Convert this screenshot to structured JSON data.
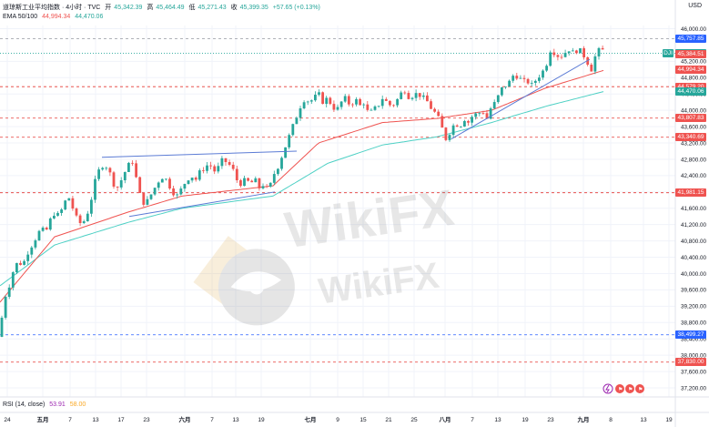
{
  "header": {
    "symbol": "道琼斯工业平均指数 · 4小时 · TVC",
    "open_label": "开",
    "open": "45,342.39",
    "high_label": "高",
    "high": "45,464.49",
    "low_label": "低",
    "low": "45,271.43",
    "close_label": "收",
    "close": "45,399.35",
    "change": "+57.65 (+0.13%)"
  },
  "ema": {
    "label": "EMA 50/100",
    "v50": "44,994.34",
    "v100": "44,470.06"
  },
  "rsi": {
    "label": "RSI (14, close)",
    "v1": "53.91",
    "v2": "58.00"
  },
  "currency": "USD",
  "colors": {
    "up": "#26a69a",
    "down": "#ef5350",
    "ema50": "#ef5350",
    "ema100": "#4dd0c4",
    "trend": "#5b7bd5",
    "level": "#e53935",
    "level_blue": "#2962ff"
  },
  "chart_data": {
    "type": "candlestick",
    "y_ticks": [
      46000,
      45200,
      44800,
      44400,
      44000,
      43600,
      43200,
      42800,
      42400,
      42000,
      41600,
      41200,
      40800,
      40400,
      40000,
      39600,
      39200,
      38800,
      38400,
      38000,
      37600,
      37200
    ],
    "ylim": [
      37050,
      46200
    ],
    "x_ticks": [
      {
        "label": "24",
        "pos": 8
      },
      {
        "label": "五月",
        "pos": 47
      },
      {
        "label": "7",
        "pos": 77
      },
      {
        "label": "13",
        "pos": 105
      },
      {
        "label": "17",
        "pos": 133
      },
      {
        "label": "23",
        "pos": 161
      },
      {
        "label": "六月",
        "pos": 203
      },
      {
        "label": "7",
        "pos": 233
      },
      {
        "label": "13",
        "pos": 259
      },
      {
        "label": "19",
        "pos": 287
      },
      {
        "label": "七月",
        "pos": 341
      },
      {
        "label": "9",
        "pos": 371
      },
      {
        "label": "15",
        "pos": 399
      },
      {
        "label": "21",
        "pos": 427
      },
      {
        "label": "25",
        "pos": 455
      },
      {
        "label": "八月",
        "pos": 489
      },
      {
        "label": "7",
        "pos": 519
      },
      {
        "label": "13",
        "pos": 547
      },
      {
        "label": "19",
        "pos": 577
      },
      {
        "label": "23",
        "pos": 605
      },
      {
        "label": "九月",
        "pos": 641
      },
      {
        "label": "8",
        "pos": 671
      },
      {
        "label": "13",
        "pos": 707
      },
      {
        "label": "19",
        "pos": 735
      }
    ],
    "price_labels": [
      {
        "text": "45,757.85",
        "value": 45757.85,
        "color": "#2962ff",
        "line": "dashed-gray"
      },
      {
        "text": "45,399.35",
        "value": 45399.35,
        "color": "#26a69a",
        "line": "solid-teal"
      },
      {
        "text": "45,384.51",
        "value": 45384.51,
        "color": "#ef5350",
        "line": "none"
      },
      {
        "text": "44,994.34",
        "value": 44994.34,
        "color": "#ef5350",
        "line": "none"
      },
      {
        "text": "44,579.20",
        "value": 44579.2,
        "color": "#ef5350",
        "line": "dashed-red"
      },
      {
        "text": "44,470.06",
        "value": 44470.06,
        "color": "#26a69a",
        "line": "none"
      },
      {
        "text": "43,807.83",
        "value": 43807.83,
        "color": "#ef5350",
        "line": "dashed-red"
      },
      {
        "text": "43,340.69",
        "value": 43340.69,
        "color": "#ef5350",
        "line": "dashed-red"
      },
      {
        "text": "41,981.15",
        "value": 41981.15,
        "color": "#ef5350",
        "line": "dashed-red"
      },
      {
        "text": "38,499.27",
        "value": 38499.27,
        "color": "#2962ff",
        "line": "dashed-blue"
      },
      {
        "text": "37,830.00",
        "value": 37830,
        "color": "#ef5350",
        "line": "dashed-red"
      }
    ],
    "closes_anchor": [
      [
        0,
        38600
      ],
      [
        5,
        39400
      ],
      [
        10,
        39700
      ],
      [
        15,
        40100
      ],
      [
        20,
        40300
      ],
      [
        25,
        40200
      ],
      [
        30,
        40500
      ],
      [
        35,
        40700
      ],
      [
        40,
        40900
      ],
      [
        45,
        41100
      ],
      [
        50,
        41000
      ],
      [
        55,
        41300
      ],
      [
        60,
        41500
      ],
      [
        65,
        41400
      ],
      [
        70,
        41700
      ],
      [
        75,
        41900
      ],
      [
        80,
        41600
      ],
      [
        85,
        41300
      ],
      [
        90,
        41200
      ],
      [
        95,
        41400
      ],
      [
        100,
        41800
      ],
      [
        105,
        42300
      ],
      [
        110,
        42600
      ],
      [
        115,
        42700
      ],
      [
        120,
        42500
      ],
      [
        125,
        42200
      ],
      [
        130,
        42100
      ],
      [
        135,
        42400
      ],
      [
        140,
        42600
      ],
      [
        145,
        42800
      ],
      [
        150,
        42300
      ],
      [
        155,
        41800
      ],
      [
        160,
        41700
      ],
      [
        165,
        41900
      ],
      [
        170,
        42100
      ],
      [
        175,
        42300
      ],
      [
        180,
        42400
      ],
      [
        185,
        42200
      ],
      [
        190,
        42000
      ],
      [
        195,
        41900
      ],
      [
        200,
        42100
      ],
      [
        205,
        42300
      ],
      [
        210,
        42400
      ],
      [
        215,
        42300
      ],
      [
        220,
        42500
      ],
      [
        225,
        42600
      ],
      [
        230,
        42700
      ],
      [
        235,
        42500
      ],
      [
        240,
        42600
      ],
      [
        245,
        42800
      ],
      [
        250,
        42700
      ],
      [
        255,
        42600
      ],
      [
        260,
        42300
      ],
      [
        265,
        42200
      ],
      [
        270,
        42300
      ],
      [
        275,
        42200
      ],
      [
        280,
        42300
      ],
      [
        285,
        42100
      ],
      [
        290,
        42200
      ],
      [
        295,
        42000
      ],
      [
        300,
        42400
      ],
      [
        305,
        42600
      ],
      [
        310,
        42900
      ],
      [
        315,
        43200
      ],
      [
        320,
        43500
      ],
      [
        325,
        43800
      ],
      [
        330,
        44100
      ],
      [
        335,
        44300
      ],
      [
        340,
        44200
      ],
      [
        345,
        44300
      ],
      [
        350,
        44400
      ],
      [
        355,
        44200
      ],
      [
        360,
        44300
      ],
      [
        365,
        44100
      ],
      [
        370,
        44000
      ],
      [
        375,
        44200
      ],
      [
        380,
        44300
      ],
      [
        385,
        44100
      ],
      [
        390,
        44300
      ],
      [
        395,
        44100
      ],
      [
        400,
        44200
      ],
      [
        405,
        43900
      ],
      [
        410,
        44000
      ],
      [
        415,
        44100
      ],
      [
        420,
        44300
      ],
      [
        425,
        44200
      ],
      [
        430,
        44100
      ],
      [
        435,
        44200
      ],
      [
        440,
        44400
      ],
      [
        445,
        44500
      ],
      [
        450,
        44300
      ],
      [
        455,
        44400
      ],
      [
        460,
        44400
      ],
      [
        465,
        44300
      ],
      [
        470,
        44200
      ],
      [
        475,
        44000
      ],
      [
        480,
        43900
      ],
      [
        485,
        43600
      ],
      [
        490,
        43300
      ],
      [
        495,
        43500
      ],
      [
        500,
        43700
      ],
      [
        505,
        43600
      ],
      [
        510,
        43800
      ],
      [
        515,
        43700
      ],
      [
        520,
        43900
      ],
      [
        525,
        43900
      ],
      [
        530,
        44000
      ],
      [
        535,
        43800
      ],
      [
        540,
        44100
      ],
      [
        545,
        44200
      ],
      [
        550,
        44500
      ],
      [
        555,
        44600
      ],
      [
        560,
        44700
      ],
      [
        565,
        44900
      ],
      [
        570,
        44800
      ],
      [
        575,
        44700
      ],
      [
        580,
        44700
      ],
      [
        585,
        44600
      ],
      [
        590,
        44800
      ],
      [
        595,
        44900
      ],
      [
        600,
        45100
      ],
      [
        605,
        45500
      ],
      [
        610,
        45400
      ],
      [
        615,
        45300
      ],
      [
        620,
        45400
      ],
      [
        625,
        45500
      ],
      [
        630,
        45400
      ],
      [
        635,
        45500
      ],
      [
        640,
        45400
      ],
      [
        645,
        45200
      ],
      [
        650,
        45000
      ],
      [
        655,
        45400
      ],
      [
        660,
        45500
      ],
      [
        665,
        45420
      ]
    ],
    "ema50_anchor": [
      [
        0,
        39300
      ],
      [
        60,
        40900
      ],
      [
        140,
        41500
      ],
      [
        200,
        41900
      ],
      [
        300,
        42150
      ],
      [
        350,
        43200
      ],
      [
        420,
        43700
      ],
      [
        480,
        43800
      ],
      [
        540,
        44000
      ],
      [
        600,
        44550
      ],
      [
        665,
        44990
      ]
    ],
    "ema100_anchor": [
      [
        0,
        39700
      ],
      [
        60,
        40700
      ],
      [
        140,
        41250
      ],
      [
        200,
        41600
      ],
      [
        300,
        41900
      ],
      [
        360,
        42700
      ],
      [
        420,
        43150
      ],
      [
        480,
        43350
      ],
      [
        540,
        43700
      ],
      [
        600,
        44100
      ],
      [
        665,
        44470
      ]
    ],
    "trendlines": [
      {
        "from": [
          112,
          42850
        ],
        "to": [
          326,
          43000
        ]
      },
      {
        "from": [
          142,
          41400
        ],
        "to": [
          302,
          42000
        ]
      },
      {
        "from": [
          496,
          43300
        ],
        "to": [
          648,
          45250
        ]
      }
    ],
    "annotations": [
      "WikiFX"
    ]
  },
  "watermark": {
    "text": "WikiFX",
    "icon": "wikifx-globe-icon"
  },
  "tools": {
    "icons": [
      "lightning-icon",
      "flag-icon",
      "flag-icon"
    ]
  }
}
